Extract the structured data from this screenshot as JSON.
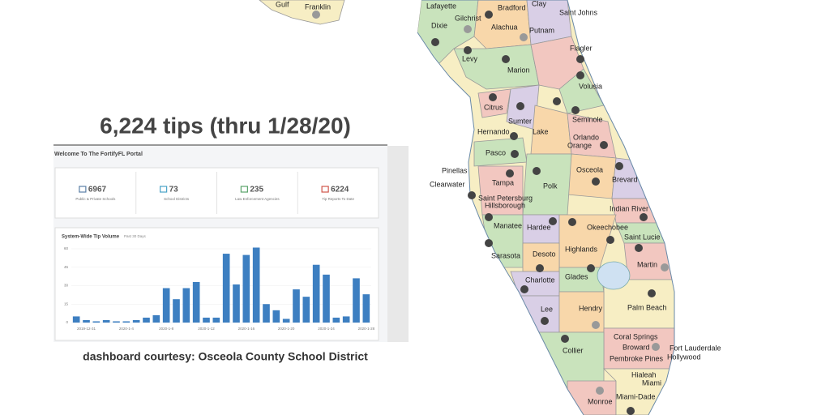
{
  "headline": "6,224 tips (thru 1/28/20)",
  "caption": "dashboard courtesy: Osceola County School District",
  "dashboard": {
    "welcome": "Welcome To The FortifyFL Portal",
    "stats": [
      {
        "value": 6967,
        "label": "Public & Private Schools",
        "color": "#5b7fa6"
      },
      {
        "value": 73,
        "label": "School Districts",
        "color": "#4aa3c8"
      },
      {
        "value": 235,
        "label": "Law Enforcement Agencies",
        "color": "#5aa36a"
      },
      {
        "value": 6224,
        "label": "Tip Reports To Date",
        "color": "#d0564b"
      }
    ],
    "chart_data": {
      "type": "bar",
      "title": "System-Wide Tip Volume",
      "subtitle": "Past 30 Days",
      "color": "#3d7fc1",
      "categories": [
        null,
        "2019-12-31",
        null,
        null,
        null,
        "2020-1-4",
        null,
        null,
        null,
        "2020-1-8",
        null,
        null,
        null,
        "2020-1-12",
        null,
        null,
        null,
        "2020-1-16",
        null,
        null,
        null,
        "2020-1-20",
        null,
        null,
        null,
        "2020-1-24",
        null,
        null,
        null,
        "2020-1-28"
      ],
      "values": [
        5,
        2,
        1,
        2,
        1,
        1,
        2,
        4,
        6,
        28,
        19,
        28,
        33,
        4,
        4,
        56,
        31,
        55,
        61,
        15,
        10,
        3,
        27,
        21,
        47,
        39,
        4,
        5,
        36,
        23
      ],
      "ylim": [
        0,
        60
      ],
      "yticks": [
        0,
        15,
        30,
        45,
        60
      ],
      "grid": true
    }
  },
  "map": {
    "labels": [
      "Gulf",
      "Franklin",
      "Lafayette",
      "Bradford",
      "Clay",
      "Saint Johns",
      "Gilchrist",
      "Dixie",
      "Alachua",
      "Putnam",
      "Flagler",
      "Levy",
      "Marion",
      "Volusia",
      "Citrus",
      "Seminole",
      "Sumter",
      "Hernando",
      "Lake",
      "Orlando",
      "Orange",
      "Pasco",
      "Osceola",
      "Pinellas",
      "Brevard",
      "Clearwater",
      "Polk",
      "Tampa",
      "Saint Petersburg",
      "Hillsborough",
      "Indian River",
      "Manatee",
      "Hardee",
      "Okeechobee",
      "Saint Lucie",
      "Highlands",
      "Sarasota",
      "Desoto",
      "Martin",
      "Glades",
      "Charlotte",
      "Palm Beach",
      "Lee",
      "Hendry",
      "Coral Springs",
      "Fort Lauderdale",
      "Broward",
      "Collier",
      "Hollywood",
      "Pembroke Pines",
      "Hialeah",
      "Miami",
      "Monroe",
      "Miami-Dade"
    ]
  }
}
